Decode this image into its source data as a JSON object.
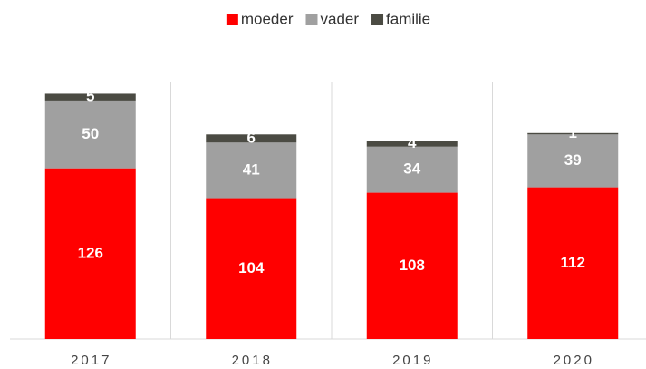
{
  "chart_data": {
    "type": "stacked_bar",
    "categories": [
      "2017",
      "2018",
      "2019",
      "2020"
    ],
    "series": [
      {
        "name": "moeder",
        "color": "#ff0000",
        "values": [
          126,
          104,
          108,
          112
        ]
      },
      {
        "name": "vader",
        "color": "#a0a0a0",
        "values": [
          50,
          41,
          34,
          39
        ]
      },
      {
        "name": "familie",
        "color": "#4b4b43",
        "values": [
          5,
          6,
          4,
          1
        ]
      }
    ],
    "ylim": [
      0,
      190
    ],
    "legend": "top"
  }
}
